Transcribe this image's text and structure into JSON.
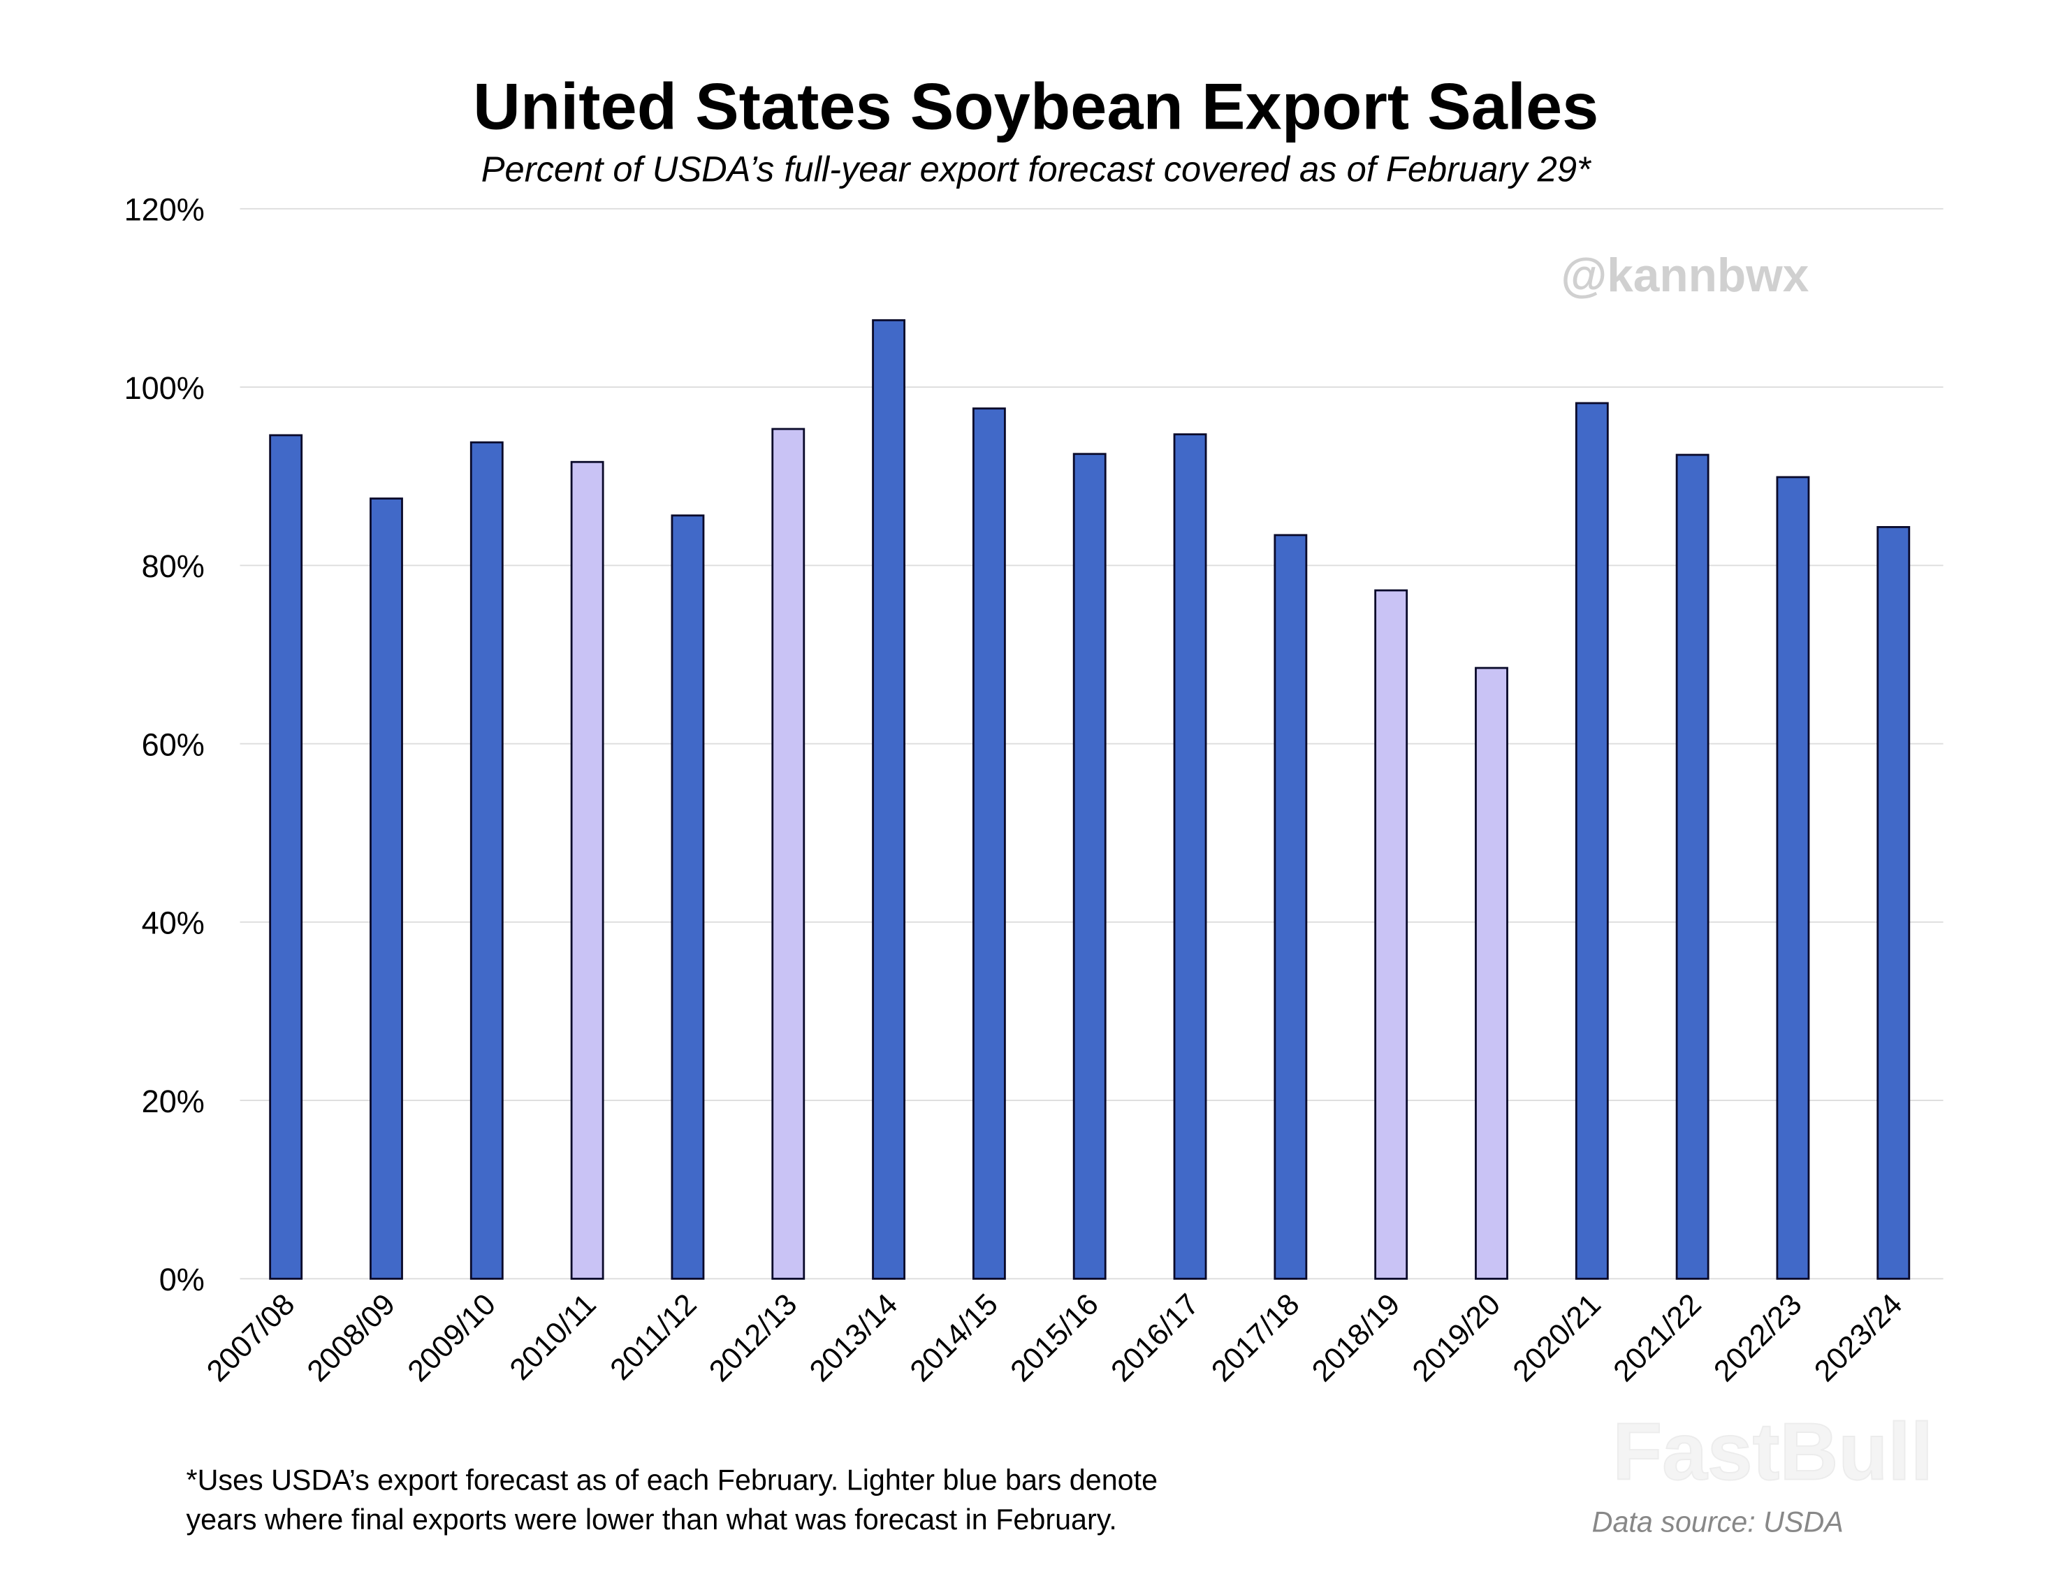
{
  "chart_data": {
    "type": "bar",
    "title": "United States Soybean Export Sales",
    "subtitle": "Percent of USDA’s full-year export forecast covered as of February 29*",
    "xlabel": "",
    "ylabel": "",
    "ylim": [
      0,
      120
    ],
    "yticks": [
      "0%",
      "20%",
      "40%",
      "60%",
      "80%",
      "100%",
      "120%"
    ],
    "ytick_values": [
      0,
      20,
      40,
      60,
      80,
      100,
      120
    ],
    "grid": true,
    "categories": [
      "2007/08",
      "2008/09",
      "2009/10",
      "2010/11",
      "2011/12",
      "2012/13",
      "2013/14",
      "2014/15",
      "2015/16",
      "2016/17",
      "2017/18",
      "2018/19",
      "2019/20",
      "2020/21",
      "2021/22",
      "2022/23",
      "2023/24"
    ],
    "values": [
      94.6,
      87.5,
      93.8,
      91.6,
      85.6,
      95.3,
      107.5,
      97.6,
      92.5,
      94.7,
      83.4,
      77.2,
      68.5,
      98.2,
      92.4,
      89.9,
      84.3
    ],
    "final_below_forecast": [
      false,
      false,
      false,
      true,
      false,
      true,
      false,
      false,
      false,
      false,
      false,
      true,
      true,
      false,
      false,
      false,
      false
    ],
    "colors": {
      "default": "#4169C8",
      "lighter": "#C9C3F5",
      "outline": "#0A0A2A",
      "grid": "#DDDDDD"
    },
    "footnote_line1": "*Uses USDA’s export forecast as of each February. Lighter blue bars denote",
    "footnote_line2": "years where final exports were lower than what was forecast in February.",
    "source": "Data source: USDA",
    "watermark": "@kannbwx",
    "logo_watermark": "FastBull"
  }
}
